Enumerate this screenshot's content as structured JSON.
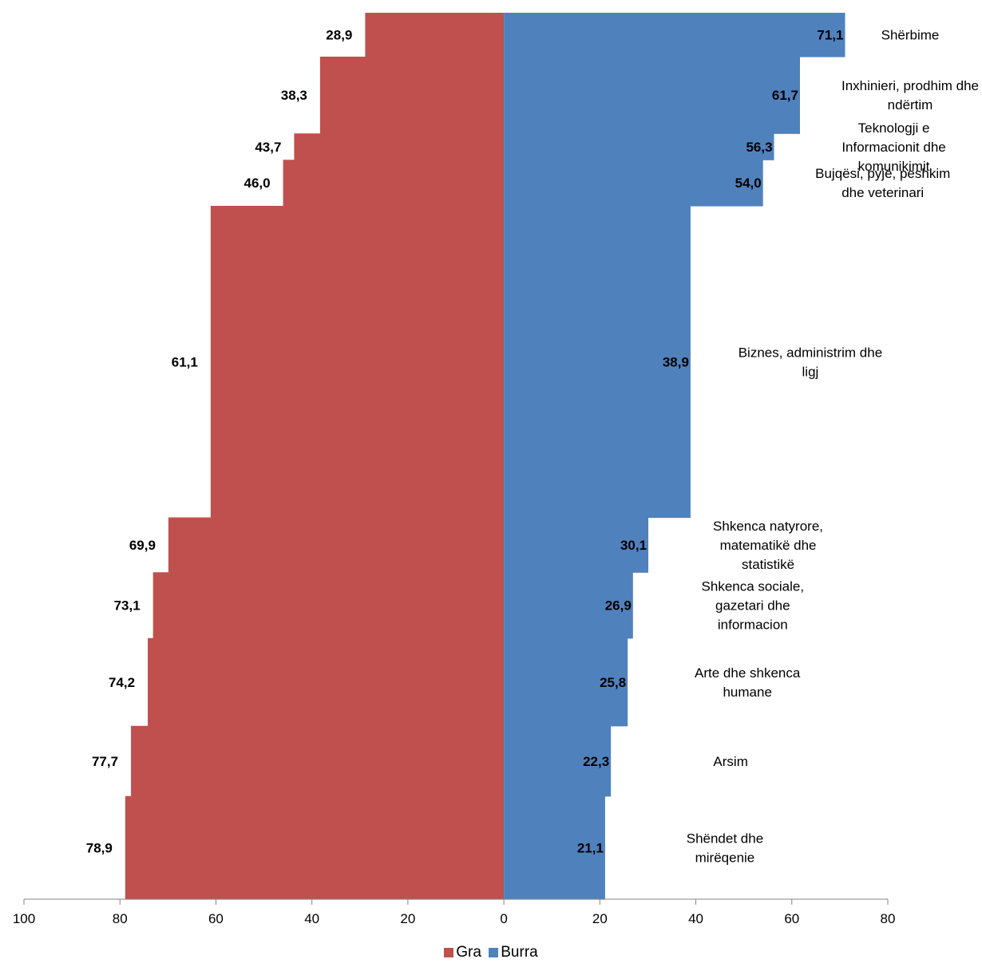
{
  "chart_data": {
    "type": "bar",
    "orientation": "horizontal-diverging",
    "categories": [
      "Shërbime",
      "Inxhinieri, prodhim dhe ndërtim",
      "Teknologji e Informacionit dhe komunikimit",
      "Bujqësi, pyje, peshkim dhe veterinari",
      "Biznes, administrim dhe ligj",
      "Shkenca natyrore, matematikë dhe statistikë",
      "Shkenca sociale, gazetari dhe informacion",
      "Arte dhe shkenca humane",
      "Arsim",
      "Shëndet dhe mirëqenie"
    ],
    "category_lines": [
      [
        "Shërbime"
      ],
      [
        "Inxhinieri, prodhim dhe",
        "ndërtim"
      ],
      [
        "Teknologji e",
        "Informacionit dhe",
        "komunikimit"
      ],
      [
        "Bujqësi, pyje, peshkim",
        "dhe veterinari"
      ],
      [
        "Biznes, administrim dhe",
        "ligj"
      ],
      [
        "Shkenca natyrore,",
        "matematikë dhe",
        "statistikë"
      ],
      [
        "Shkenca sociale,",
        "gazetari dhe",
        "informacion"
      ],
      [
        "Arte dhe shkenca",
        "humane"
      ],
      [
        "Arsim"
      ],
      [
        "Shëndet dhe",
        "mirëqenie"
      ]
    ],
    "category_shares": [
      1,
      1.75,
      0.6,
      1.05,
      7.1,
      1.25,
      1.5,
      2.0,
      1.6,
      2.35
    ],
    "series": [
      {
        "name": "Gra",
        "color": "#C0504D",
        "side": "left",
        "values": [
          28.9,
          38.3,
          43.7,
          46.0,
          61.1,
          69.9,
          73.1,
          74.2,
          77.7,
          78.9
        ],
        "labels": [
          "28,9",
          "38,3",
          "43,7",
          "46,0",
          "61,1",
          "69,9",
          "73,1",
          "74,2",
          "77,7",
          "78,9"
        ]
      },
      {
        "name": "Burra",
        "color": "#4F81BD",
        "side": "right",
        "values": [
          71.1,
          61.7,
          56.3,
          54.0,
          38.9,
          30.1,
          26.9,
          25.8,
          22.3,
          21.1
        ],
        "labels": [
          "71,1",
          "61,7",
          "56,3",
          "54,0",
          "38,9",
          "30,1",
          "26,9",
          "25,8",
          "22,3",
          "21,1"
        ]
      }
    ],
    "x_ticks": [
      "100",
      "80",
      "60",
      "40",
      "20",
      "0",
      "20",
      "40",
      "60",
      "80"
    ],
    "x_tick_values": [
      -100,
      -80,
      -60,
      -40,
      -20,
      0,
      20,
      40,
      60,
      80
    ],
    "xlim": [
      -100,
      80
    ],
    "grid": false,
    "legend_position": "bottom"
  },
  "legend": {
    "items": [
      {
        "label": "Gra",
        "color": "#C0504D"
      },
      {
        "label": "Burra",
        "color": "#4F81BD"
      }
    ]
  }
}
